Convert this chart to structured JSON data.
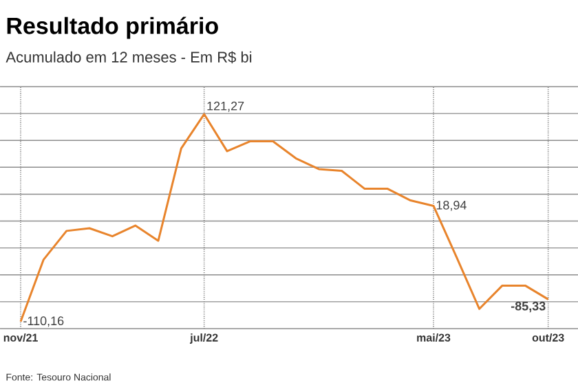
{
  "chart_data": {
    "type": "line",
    "title": "Resultado primário",
    "subtitle": "Acumulado em 12 meses - Em R$ bi",
    "annotations": [
      "Fonte: Tesouro Nacional"
    ],
    "categories": [
      "nov/21",
      null,
      null,
      null,
      null,
      null,
      null,
      null,
      "jul/22",
      null,
      null,
      null,
      null,
      null,
      null,
      null,
      null,
      null,
      "mai/23",
      null,
      null,
      null,
      null,
      "out/23"
    ],
    "values": [
      -110.16,
      -41,
      -9,
      -6,
      -15,
      -3,
      -20,
      83,
      121.27,
      80,
      91,
      91,
      72,
      60,
      58,
      38,
      38,
      25,
      18.94,
      -38,
      -96,
      -70,
      -70,
      -85.33
    ],
    "value_labels": [
      "-110,16",
      null,
      null,
      null,
      null,
      null,
      null,
      null,
      "121,27",
      null,
      null,
      null,
      null,
      null,
      null,
      null,
      null,
      null,
      "18,94",
      null,
      null,
      null,
      null,
      "-85,33"
    ],
    "color": "#e8842c",
    "ylim": [
      -118,
      152
    ],
    "yticks": [
      {
        "value": -118,
        "label": null
      },
      {
        "value": -88,
        "label": null
      },
      {
        "value": -58,
        "label": null
      },
      {
        "value": -28,
        "label": null
      },
      {
        "value": 2,
        "label": null
      },
      {
        "value": 32,
        "label": null
      },
      {
        "value": 62,
        "label": null
      },
      {
        "value": 92,
        "label": null
      },
      {
        "value": 122,
        "label": null
      },
      {
        "value": 152,
        "label": null
      }
    ],
    "tick_labels": "x",
    "grid": true,
    "marker": "none",
    "line_style": "solid"
  }
}
